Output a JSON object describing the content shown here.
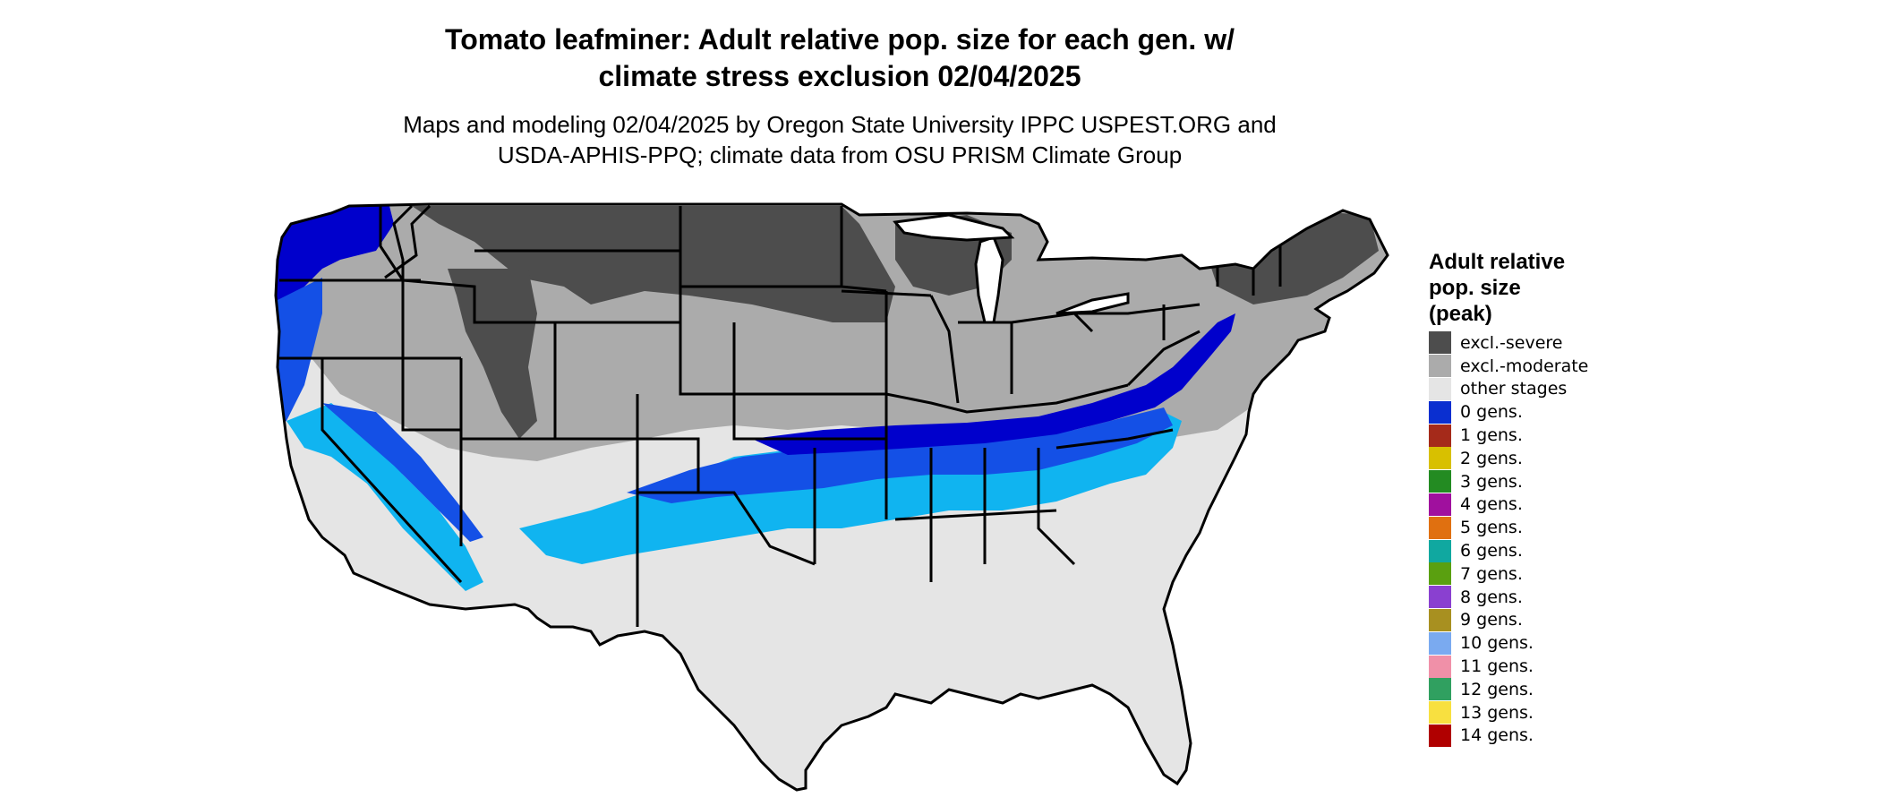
{
  "title": {
    "line1": "Tomato leafminer: Adult relative pop. size for each gen. w/",
    "line2": "climate stress exclusion 02/04/2025"
  },
  "subtitle": {
    "line1": "Maps and modeling 02/04/2025 by Oregon State University IPPC USPEST.ORG and",
    "line2": "USDA-APHIS-PPQ; climate data from OSU PRISM Climate Group"
  },
  "legend": {
    "title_lines": [
      "Adult relative",
      "pop. size",
      "(peak)"
    ],
    "items": [
      {
        "label": "excl.-severe",
        "color": "#4d4d4d"
      },
      {
        "label": "excl.-moderate",
        "color": "#ababab"
      },
      {
        "label": "other stages",
        "color": "#e5e5e5"
      },
      {
        "label": "0 gens.",
        "color": "#0a2fd0"
      },
      {
        "label": "1 gens.",
        "color": "#a52a1a"
      },
      {
        "label": "2 gens.",
        "color": "#d8c000"
      },
      {
        "label": "3 gens.",
        "color": "#238b22"
      },
      {
        "label": "4 gens.",
        "color": "#a0109e"
      },
      {
        "label": "5 gens.",
        "color": "#e07010"
      },
      {
        "label": "6 gens.",
        "color": "#10a8a0"
      },
      {
        "label": "7 gens.",
        "color": "#5aa010"
      },
      {
        "label": "8 gens.",
        "color": "#8a40d0"
      },
      {
        "label": "9 gens.",
        "color": "#a89020"
      },
      {
        "label": "10 gens.",
        "color": "#7aaaf0"
      },
      {
        "label": "11 gens.",
        "color": "#f090a8"
      },
      {
        "label": "12 gens.",
        "color": "#30a060"
      },
      {
        "label": "13 gens.",
        "color": "#f8e040"
      },
      {
        "label": "14 gens.",
        "color": "#b00000"
      }
    ]
  },
  "map_colors": {
    "severe": "#4d4d4d",
    "moderate": "#ababab",
    "other": "#e5e5e5",
    "gens0_dark": "#0000cc",
    "gens0_mid": "#1450e6",
    "gens0_light": "#10b4f0",
    "border": "#000000"
  }
}
